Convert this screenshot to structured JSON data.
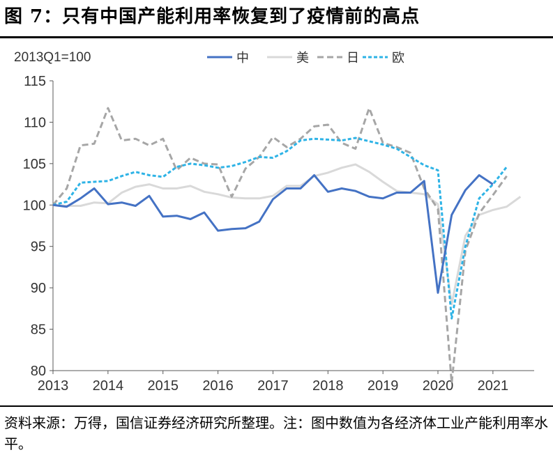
{
  "header": {
    "title": "图 7：只有中国产能利用率恢复到了疫情前的高点"
  },
  "footer": {
    "source": "资料来源：万得，国信证券经济研究所整理。注：图中数值为各经济体工业产能利用率水平。"
  },
  "chart_data": {
    "type": "line",
    "unit_label": "2013Q1=100",
    "legend_position": "top",
    "grid": false,
    "ylim": [
      80,
      115
    ],
    "yticks": [
      80,
      85,
      90,
      95,
      100,
      105,
      110,
      115
    ],
    "xlim": [
      2013,
      2021.75
    ],
    "xticks": [
      "2013",
      "2014",
      "2015",
      "2016",
      "2017",
      "2018",
      "2019",
      "2020",
      "2021"
    ],
    "x": [
      2013.0,
      2013.25,
      2013.5,
      2013.75,
      2014.0,
      2014.25,
      2014.5,
      2014.75,
      2015.0,
      2015.25,
      2015.5,
      2015.75,
      2016.0,
      2016.25,
      2016.5,
      2016.75,
      2017.0,
      2017.25,
      2017.5,
      2017.75,
      2018.0,
      2018.25,
      2018.5,
      2018.75,
      2019.0,
      2019.25,
      2019.5,
      2019.75,
      2020.0,
      2020.25,
      2020.5,
      2020.75,
      2021.0,
      2021.25,
      2021.5
    ],
    "series": [
      {
        "name": "中",
        "color": "#4472c4",
        "style": "solid",
        "values": [
          100.0,
          99.8,
          100.8,
          102.0,
          100.1,
          100.3,
          99.9,
          101.1,
          98.6,
          98.7,
          98.3,
          99.1,
          96.9,
          97.1,
          97.2,
          98.0,
          100.7,
          102.0,
          102.0,
          103.6,
          101.6,
          102.0,
          101.7,
          101.0,
          100.8,
          101.5,
          101.5,
          102.9,
          89.4,
          98.8,
          101.8,
          103.6,
          102.5,
          null,
          null
        ]
      },
      {
        "name": "美",
        "color": "#d9d9d9",
        "style": "solid",
        "values": [
          100.0,
          99.9,
          99.9,
          100.3,
          100.2,
          101.5,
          102.2,
          102.5,
          102.0,
          102.0,
          102.3,
          101.6,
          101.3,
          100.9,
          100.8,
          100.8,
          101.1,
          102.3,
          102.3,
          103.5,
          103.9,
          104.5,
          104.9,
          104.0,
          102.8,
          101.7,
          101.5,
          101.3,
          100.1,
          88.0,
          96.3,
          98.8,
          99.4,
          99.8,
          101.0
        ]
      },
      {
        "name": "日",
        "color": "#a6a6a6",
        "style": "dash",
        "values": [
          100.0,
          102.0,
          107.2,
          107.4,
          111.7,
          107.8,
          108.0,
          107.2,
          108.0,
          104.2,
          105.7,
          105.0,
          104.9,
          101.0,
          104.4,
          105.8,
          108.2,
          107.0,
          108.0,
          109.5,
          109.7,
          107.5,
          106.8,
          111.7,
          107.5,
          107.0,
          106.3,
          102.0,
          99.5,
          78.5,
          94.5,
          99.0,
          101.2,
          103.5,
          null
        ]
      },
      {
        "name": "欧",
        "color": "#2eb3e6",
        "style": "shortdash",
        "values": [
          100.0,
          100.4,
          102.7,
          102.8,
          102.9,
          103.5,
          104.0,
          103.6,
          103.4,
          104.6,
          105.0,
          104.8,
          104.5,
          104.7,
          105.2,
          105.8,
          105.7,
          106.5,
          107.8,
          108.0,
          107.9,
          107.8,
          108.1,
          107.7,
          107.3,
          106.8,
          105.8,
          104.8,
          104.2,
          86.3,
          95.0,
          100.8,
          102.5,
          104.6,
          null
        ]
      }
    ]
  }
}
